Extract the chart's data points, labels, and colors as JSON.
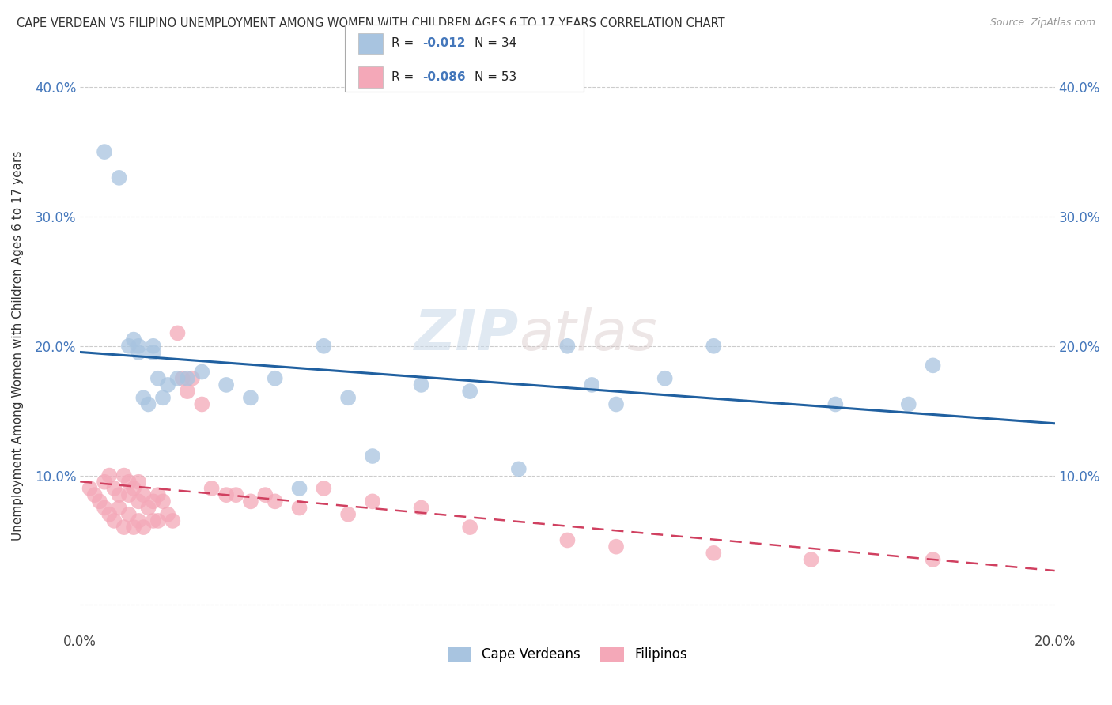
{
  "title": "CAPE VERDEAN VS FILIPINO UNEMPLOYMENT AMONG WOMEN WITH CHILDREN AGES 6 TO 17 YEARS CORRELATION CHART",
  "source": "Source: ZipAtlas.com",
  "ylabel": "Unemployment Among Women with Children Ages 6 to 17 years",
  "xlim": [
    0.0,
    0.2
  ],
  "ylim": [
    -0.02,
    0.42
  ],
  "xticks": [
    0.0,
    0.05,
    0.1,
    0.15,
    0.2
  ],
  "xtick_labels": [
    "0.0%",
    "",
    "",
    "",
    "20.0%"
  ],
  "yticks": [
    0.0,
    0.1,
    0.2,
    0.3,
    0.4
  ],
  "ytick_labels": [
    "",
    "10.0%",
    "20.0%",
    "30.0%",
    "40.0%"
  ],
  "legend_R": [
    "-0.012",
    "-0.086"
  ],
  "legend_N": [
    "34",
    "53"
  ],
  "cape_verdean_color": "#a8c4e0",
  "filipino_color": "#f4a8b8",
  "cv_trend_color": "#2060a0",
  "fil_trend_color": "#d04060",
  "watermark_zip": "ZIP",
  "watermark_atlas": "atlas",
  "cv_scatter_x": [
    0.005,
    0.008,
    0.01,
    0.011,
    0.012,
    0.012,
    0.013,
    0.014,
    0.015,
    0.015,
    0.016,
    0.017,
    0.018,
    0.02,
    0.022,
    0.025,
    0.03,
    0.035,
    0.04,
    0.045,
    0.05,
    0.055,
    0.06,
    0.07,
    0.08,
    0.09,
    0.1,
    0.105,
    0.11,
    0.12,
    0.13,
    0.155,
    0.17,
    0.175
  ],
  "cv_scatter_y": [
    0.35,
    0.33,
    0.2,
    0.205,
    0.2,
    0.195,
    0.16,
    0.155,
    0.2,
    0.195,
    0.175,
    0.16,
    0.17,
    0.175,
    0.175,
    0.18,
    0.17,
    0.16,
    0.175,
    0.09,
    0.2,
    0.16,
    0.115,
    0.17,
    0.165,
    0.105,
    0.2,
    0.17,
    0.155,
    0.175,
    0.2,
    0.155,
    0.155,
    0.185
  ],
  "fil_scatter_x": [
    0.002,
    0.003,
    0.004,
    0.005,
    0.005,
    0.006,
    0.006,
    0.007,
    0.007,
    0.008,
    0.008,
    0.009,
    0.009,
    0.01,
    0.01,
    0.01,
    0.011,
    0.011,
    0.012,
    0.012,
    0.012,
    0.013,
    0.013,
    0.014,
    0.015,
    0.015,
    0.016,
    0.016,
    0.017,
    0.018,
    0.019,
    0.02,
    0.021,
    0.022,
    0.023,
    0.025,
    0.027,
    0.03,
    0.032,
    0.035,
    0.038,
    0.04,
    0.045,
    0.05,
    0.055,
    0.06,
    0.07,
    0.08,
    0.1,
    0.11,
    0.13,
    0.15,
    0.175
  ],
  "fil_scatter_y": [
    0.09,
    0.085,
    0.08,
    0.095,
    0.075,
    0.1,
    0.07,
    0.09,
    0.065,
    0.085,
    0.075,
    0.1,
    0.06,
    0.095,
    0.085,
    0.07,
    0.09,
    0.06,
    0.095,
    0.08,
    0.065,
    0.085,
    0.06,
    0.075,
    0.08,
    0.065,
    0.085,
    0.065,
    0.08,
    0.07,
    0.065,
    0.21,
    0.175,
    0.165,
    0.175,
    0.155,
    0.09,
    0.085,
    0.085,
    0.08,
    0.085,
    0.08,
    0.075,
    0.09,
    0.07,
    0.08,
    0.075,
    0.06,
    0.05,
    0.045,
    0.04,
    0.035,
    0.035
  ]
}
